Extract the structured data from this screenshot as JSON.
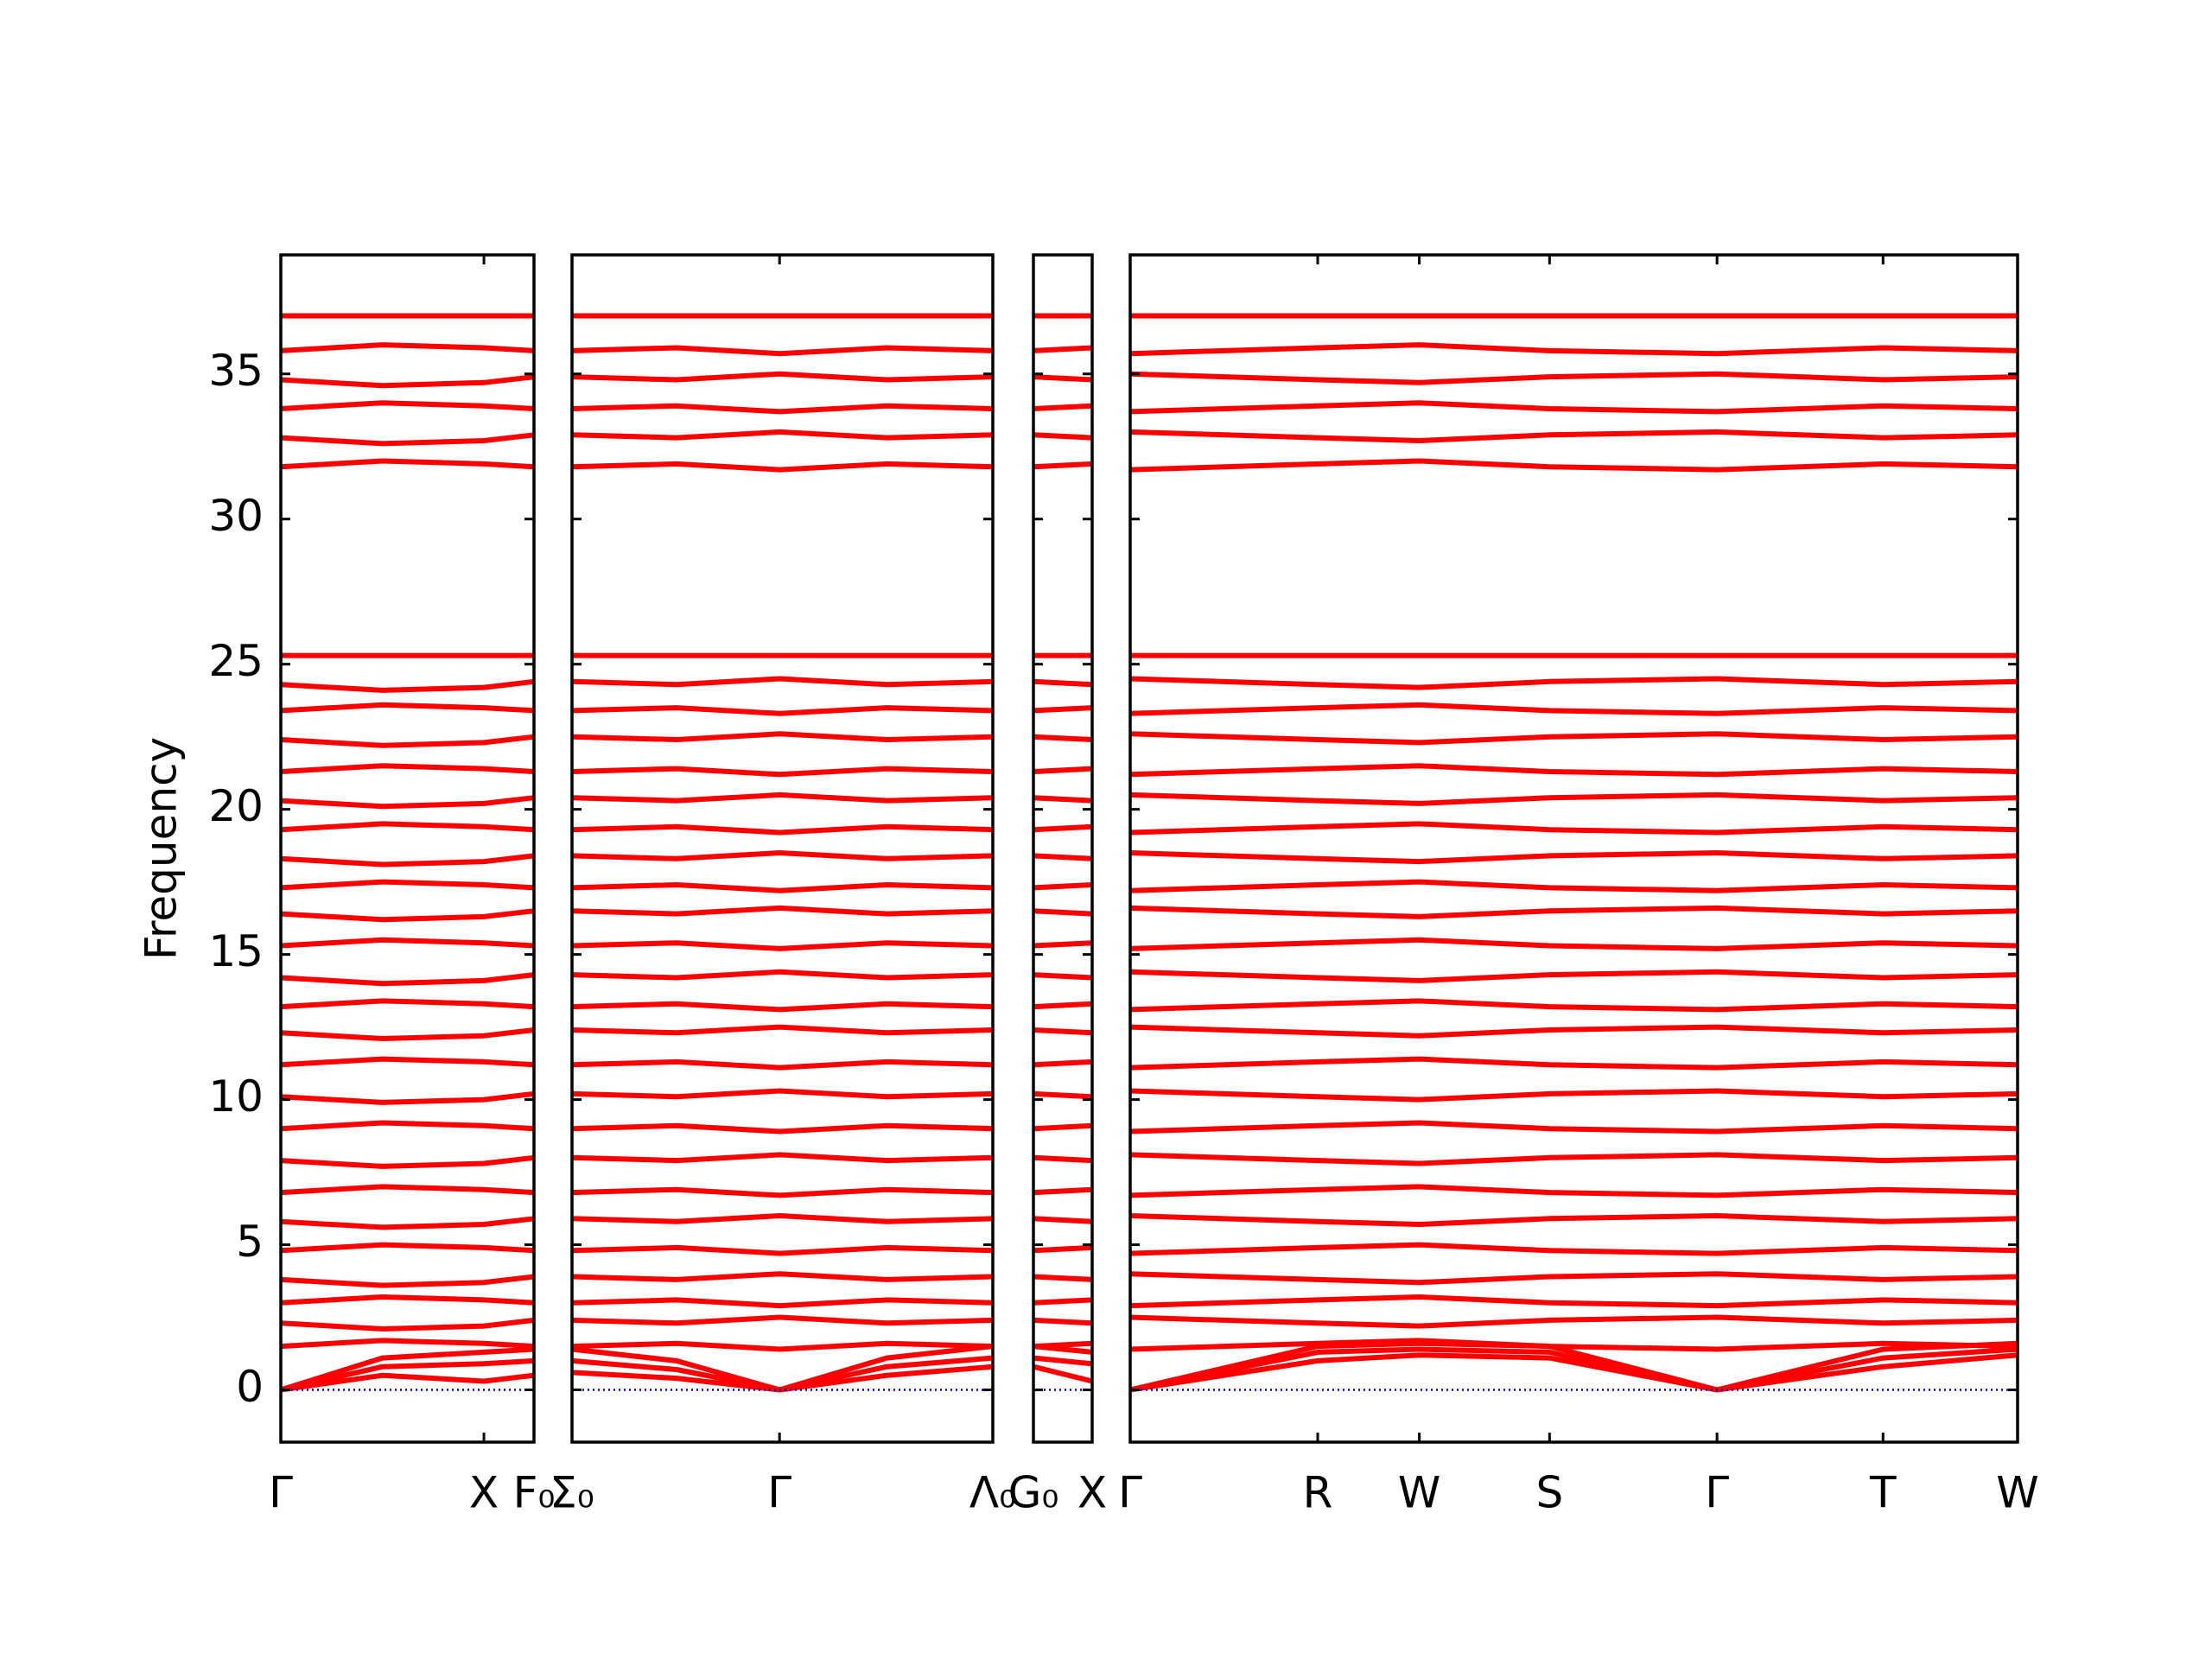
{
  "chart_data": {
    "type": "line",
    "ylabel": "Frequency",
    "ylim": [
      -1.8,
      39.1
    ],
    "yticks": [
      0,
      5,
      10,
      15,
      20,
      25,
      30,
      35
    ],
    "color": "#ff0000",
    "reference_line": {
      "value": 0,
      "color": "#0000cc"
    },
    "panels": [
      {
        "xlim": [
          0,
          1.77
        ],
        "x": [
          0,
          0.71,
          1.42,
          1.77
        ],
        "xticks": [
          {
            "value": 0,
            "label": "Γ"
          },
          {
            "value": 1.42,
            "label": "X"
          },
          {
            "value": 1.77,
            "label": "F₀"
          }
        ],
        "bands": [
          [
            0,
            0.5,
            0.3,
            0.5
          ],
          [
            0,
            0.8,
            0.9,
            1.0
          ],
          [
            0,
            1.1,
            1.3,
            1.4
          ],
          [
            1.5,
            1.7,
            1.6,
            1.5
          ],
          [
            2.3,
            2.1,
            2.2,
            2.4
          ],
          [
            3,
            3.2,
            3.1,
            3
          ],
          [
            3.8,
            3.6,
            3.7,
            3.9
          ],
          [
            4.8,
            5,
            4.9,
            4.8
          ],
          [
            5.8,
            5.6,
            5.7,
            5.9
          ],
          [
            6.8,
            7,
            6.9,
            6.8
          ],
          [
            7.9,
            7.7,
            7.8,
            8
          ],
          [
            9,
            9.2,
            9.1,
            9
          ],
          [
            10.1,
            9.9,
            10,
            10.2
          ],
          [
            11.2,
            11.4,
            11.3,
            11.2
          ],
          [
            12.3,
            12.1,
            12.2,
            12.4
          ],
          [
            13.2,
            13.4,
            13.3,
            13.2
          ],
          [
            14.2,
            14,
            14.1,
            14.3
          ],
          [
            15.3,
            15.5,
            15.4,
            15.3
          ],
          [
            16.4,
            16.2,
            16.3,
            16.5
          ],
          [
            17.3,
            17.5,
            17.4,
            17.3
          ],
          [
            18.3,
            18.1,
            18.2,
            18.4
          ],
          [
            19.3,
            19.5,
            19.4,
            19.3
          ],
          [
            20.3,
            20.1,
            20.2,
            20.4
          ],
          [
            21.3,
            21.5,
            21.4,
            21.3
          ],
          [
            22.4,
            22.2,
            22.3,
            22.5
          ],
          [
            23.4,
            23.6,
            23.5,
            23.4
          ],
          [
            24.3,
            24.1,
            24.2,
            24.4
          ],
          [
            25.3,
            25.3,
            25.3,
            25.3
          ],
          [
            31.8,
            32,
            31.9,
            31.8
          ],
          [
            32.8,
            32.6,
            32.7,
            32.9
          ],
          [
            33.8,
            34,
            33.9,
            33.8
          ],
          [
            34.8,
            34.6,
            34.7,
            34.9
          ],
          [
            35.8,
            36,
            35.9,
            35.8
          ],
          [
            37,
            37,
            37,
            37
          ]
        ]
      },
      {
        "xlim": [
          1.77,
          4.71
        ],
        "x": [
          1.77,
          2.5,
          3.22,
          3.97,
          4.71
        ],
        "xticks": [
          {
            "value": 1.77,
            "label": "Σ₀"
          },
          {
            "value": 3.22,
            "label": "Γ"
          },
          {
            "value": 4.71,
            "label": "Λ₀"
          }
        ],
        "bands": [
          [
            0.6,
            0.4,
            0,
            0.5,
            0.8
          ],
          [
            1.0,
            0.7,
            0,
            0.8,
            1.1
          ],
          [
            1.4,
            1.0,
            0,
            1.1,
            1.5
          ],
          [
            1.5,
            1.6,
            1.4,
            1.6,
            1.5
          ],
          [
            2.4,
            2.3,
            2.5,
            2.3,
            2.4
          ],
          [
            3,
            3.1,
            2.9,
            3.1,
            3
          ],
          [
            3.9,
            3.8,
            4,
            3.8,
            3.9
          ],
          [
            4.8,
            4.9,
            4.7,
            4.9,
            4.8
          ],
          [
            5.9,
            5.8,
            6,
            5.8,
            5.9
          ],
          [
            6.8,
            6.9,
            6.7,
            6.9,
            6.8
          ],
          [
            8,
            7.9,
            8.1,
            7.9,
            8
          ],
          [
            9,
            9.1,
            8.9,
            9.1,
            9
          ],
          [
            10.2,
            10.1,
            10.3,
            10.1,
            10.2
          ],
          [
            11.2,
            11.3,
            11.1,
            11.3,
            11.2
          ],
          [
            12.4,
            12.3,
            12.5,
            12.3,
            12.4
          ],
          [
            13.2,
            13.3,
            13.1,
            13.3,
            13.2
          ],
          [
            14.3,
            14.2,
            14.4,
            14.2,
            14.3
          ],
          [
            15.3,
            15.4,
            15.2,
            15.4,
            15.3
          ],
          [
            16.5,
            16.4,
            16.6,
            16.4,
            16.5
          ],
          [
            17.3,
            17.4,
            17.2,
            17.4,
            17.3
          ],
          [
            18.4,
            18.3,
            18.5,
            18.3,
            18.4
          ],
          [
            19.3,
            19.4,
            19.2,
            19.4,
            19.3
          ],
          [
            20.4,
            20.3,
            20.5,
            20.3,
            20.4
          ],
          [
            21.3,
            21.4,
            21.2,
            21.4,
            21.3
          ],
          [
            22.5,
            22.4,
            22.6,
            22.4,
            22.5
          ],
          [
            23.4,
            23.5,
            23.3,
            23.5,
            23.4
          ],
          [
            24.4,
            24.3,
            24.5,
            24.3,
            24.4
          ],
          [
            25.3,
            25.3,
            25.3,
            25.3,
            25.3
          ],
          [
            31.8,
            31.9,
            31.7,
            31.9,
            31.8
          ],
          [
            32.9,
            32.8,
            33,
            32.8,
            32.9
          ],
          [
            33.8,
            33.9,
            33.7,
            33.9,
            33.8
          ],
          [
            34.9,
            34.8,
            35,
            34.8,
            34.9
          ],
          [
            35.8,
            35.9,
            35.7,
            35.9,
            35.8
          ],
          [
            37,
            37,
            37,
            37,
            37
          ]
        ]
      },
      {
        "xlim": [
          4.71,
          5.12
        ],
        "x": [
          4.71,
          5.12
        ],
        "xticks": [
          {
            "value": 4.71,
            "label": "G₀"
          },
          {
            "value": 5.12,
            "label": "X"
          }
        ],
        "bands": [
          [
            0.8,
            0.3
          ],
          [
            1.1,
            0.9
          ],
          [
            1.5,
            1.3
          ],
          [
            1.5,
            1.6
          ],
          [
            2.4,
            2.3
          ],
          [
            3,
            3.1
          ],
          [
            3.9,
            3.8
          ],
          [
            4.8,
            4.9
          ],
          [
            5.9,
            5.8
          ],
          [
            6.8,
            6.9
          ],
          [
            8,
            7.9
          ],
          [
            9,
            9.1
          ],
          [
            10.2,
            10.1
          ],
          [
            11.2,
            11.3
          ],
          [
            12.4,
            12.3
          ],
          [
            13.2,
            13.3
          ],
          [
            14.3,
            14.2
          ],
          [
            15.3,
            15.4
          ],
          [
            16.5,
            16.4
          ],
          [
            17.3,
            17.4
          ],
          [
            18.4,
            18.3
          ],
          [
            19.3,
            19.4
          ],
          [
            20.4,
            20.3
          ],
          [
            21.3,
            21.4
          ],
          [
            22.5,
            22.4
          ],
          [
            23.4,
            23.5
          ],
          [
            24.4,
            24.3
          ],
          [
            25.3,
            25.3
          ],
          [
            31.8,
            31.9
          ],
          [
            32.9,
            32.8
          ],
          [
            33.8,
            33.9
          ],
          [
            34.9,
            34.8
          ],
          [
            35.8,
            35.9
          ],
          [
            37,
            37
          ]
        ]
      },
      {
        "xlim": [
          5.12,
          11.32
        ],
        "x": [
          5.12,
          6.43,
          7.14,
          8.05,
          9.22,
          10.38,
          11.32
        ],
        "xticks": [
          {
            "value": 5.12,
            "label": "Γ"
          },
          {
            "value": 6.43,
            "label": "R"
          },
          {
            "value": 7.14,
            "label": "W"
          },
          {
            "value": 8.05,
            "label": "S"
          },
          {
            "value": 9.22,
            "label": "Γ"
          },
          {
            "value": 10.38,
            "label": "T"
          },
          {
            "value": 11.32,
            "label": "W"
          }
        ],
        "bands": [
          [
            0,
            1.0,
            1.2,
            1.1,
            0,
            0.8,
            1.2
          ],
          [
            0,
            1.3,
            1.4,
            1.3,
            0,
            1.1,
            1.4
          ],
          [
            0,
            1.5,
            1.6,
            1.5,
            0,
            1.4,
            1.6
          ],
          [
            1.4,
            1.6,
            1.7,
            1.5,
            1.4,
            1.6,
            1.5
          ],
          [
            2.5,
            2.3,
            2.2,
            2.4,
            2.5,
            2.3,
            2.4
          ],
          [
            2.9,
            3.1,
            3.2,
            3,
            2.9,
            3.1,
            3
          ],
          [
            4,
            3.8,
            3.7,
            3.9,
            4,
            3.8,
            3.9
          ],
          [
            4.7,
            4.9,
            5,
            4.8,
            4.7,
            4.9,
            4.8
          ],
          [
            6,
            5.8,
            5.7,
            5.9,
            6,
            5.8,
            5.9
          ],
          [
            6.7,
            6.9,
            7,
            6.8,
            6.7,
            6.9,
            6.8
          ],
          [
            8.1,
            7.9,
            7.8,
            8,
            8.1,
            7.9,
            8
          ],
          [
            8.9,
            9.1,
            9.2,
            9,
            8.9,
            9.1,
            9
          ],
          [
            10.3,
            10.1,
            10,
            10.2,
            10.3,
            10.1,
            10.2
          ],
          [
            11.1,
            11.3,
            11.4,
            11.2,
            11.1,
            11.3,
            11.2
          ],
          [
            12.5,
            12.3,
            12.2,
            12.4,
            12.5,
            12.3,
            12.4
          ],
          [
            13.1,
            13.3,
            13.4,
            13.2,
            13.1,
            13.3,
            13.2
          ],
          [
            14.4,
            14.2,
            14.1,
            14.3,
            14.4,
            14.2,
            14.3
          ],
          [
            15.2,
            15.4,
            15.5,
            15.3,
            15.2,
            15.4,
            15.3
          ],
          [
            16.6,
            16.4,
            16.3,
            16.5,
            16.6,
            16.4,
            16.5
          ],
          [
            17.2,
            17.4,
            17.5,
            17.3,
            17.2,
            17.4,
            17.3
          ],
          [
            18.5,
            18.3,
            18.2,
            18.4,
            18.5,
            18.3,
            18.4
          ],
          [
            19.2,
            19.4,
            19.5,
            19.3,
            19.2,
            19.4,
            19.3
          ],
          [
            20.5,
            20.3,
            20.2,
            20.4,
            20.5,
            20.3,
            20.4
          ],
          [
            21.2,
            21.4,
            21.5,
            21.3,
            21.2,
            21.4,
            21.3
          ],
          [
            22.6,
            22.4,
            22.3,
            22.5,
            22.6,
            22.4,
            22.5
          ],
          [
            23.3,
            23.5,
            23.6,
            23.4,
            23.3,
            23.5,
            23.4
          ],
          [
            24.5,
            24.3,
            24.2,
            24.4,
            24.5,
            24.3,
            24.4
          ],
          [
            25.3,
            25.3,
            25.3,
            25.3,
            25.3,
            25.3,
            25.3
          ],
          [
            31.7,
            31.9,
            32,
            31.8,
            31.7,
            31.9,
            31.8
          ],
          [
            33,
            32.8,
            32.7,
            32.9,
            33,
            32.8,
            32.9
          ],
          [
            33.7,
            33.9,
            34,
            33.8,
            33.7,
            33.9,
            33.8
          ],
          [
            35,
            34.8,
            34.7,
            34.9,
            35,
            34.8,
            34.9
          ],
          [
            35.7,
            35.9,
            36,
            35.8,
            35.7,
            35.9,
            35.8
          ],
          [
            37,
            37,
            37,
            37,
            37,
            37,
            37
          ]
        ]
      }
    ]
  }
}
